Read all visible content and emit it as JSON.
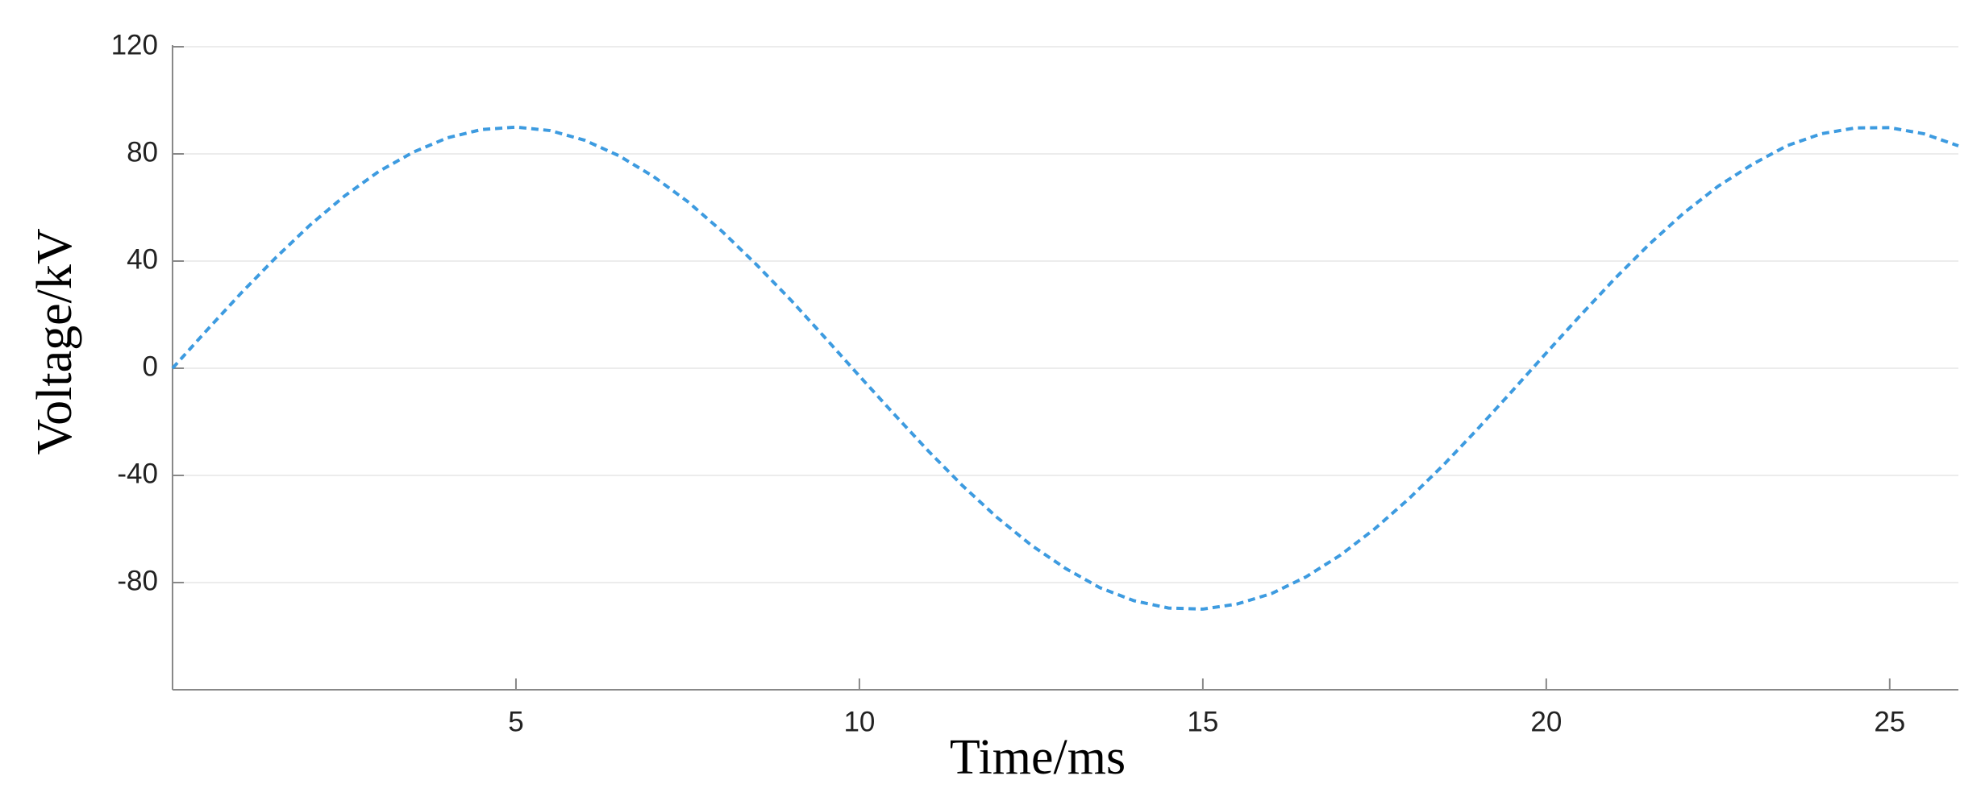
{
  "chart_data": {
    "type": "line",
    "x_label": "Time/ms",
    "y_label": "Voltage/kV",
    "xlim": [
      0,
      26
    ],
    "ylim": [
      -120,
      120
    ],
    "xticks": [
      5,
      10,
      15,
      20,
      25
    ],
    "yticks": [
      120,
      80,
      40,
      0,
      -40,
      -80
    ],
    "grid": true,
    "series": [
      {
        "color": "#3d9be0",
        "x": [
          0,
          0.5,
          1,
          1.5,
          2,
          2.5,
          3,
          3.5,
          4,
          4.5,
          5,
          5.5,
          6,
          6.5,
          7,
          7.5,
          8,
          8.5,
          9,
          9.5,
          10,
          10.5,
          11,
          11.5,
          12,
          12.5,
          13,
          13.5,
          14,
          14.5,
          15,
          15.5,
          16,
          16.5,
          17,
          17.5,
          18,
          18.5,
          19,
          19.5,
          20,
          20.5,
          21,
          21.5,
          22,
          22.5,
          23,
          23.5,
          24,
          24.5,
          25,
          25.5,
          26
        ],
        "values": [
          0,
          14.2,
          28.1,
          41.2,
          53.4,
          64.2,
          73.4,
          80.6,
          86.0,
          89.1,
          90.0,
          88.7,
          85.1,
          79.3,
          71.6,
          62.2,
          51.1,
          38.7,
          25.5,
          11.4,
          -2.9,
          -17.0,
          -30.8,
          -43.8,
          -55.6,
          -66.0,
          -74.7,
          -81.9,
          -86.8,
          -89.5,
          -89.9,
          -88.0,
          -84.1,
          -77.9,
          -69.8,
          -60.0,
          -48.7,
          -36.2,
          -22.7,
          -8.6,
          5.7,
          19.8,
          33.5,
          46.3,
          57.9,
          67.9,
          76.1,
          83.0,
          87.5,
          89.7,
          89.8,
          87.5,
          83.0
        ]
      }
    ]
  }
}
